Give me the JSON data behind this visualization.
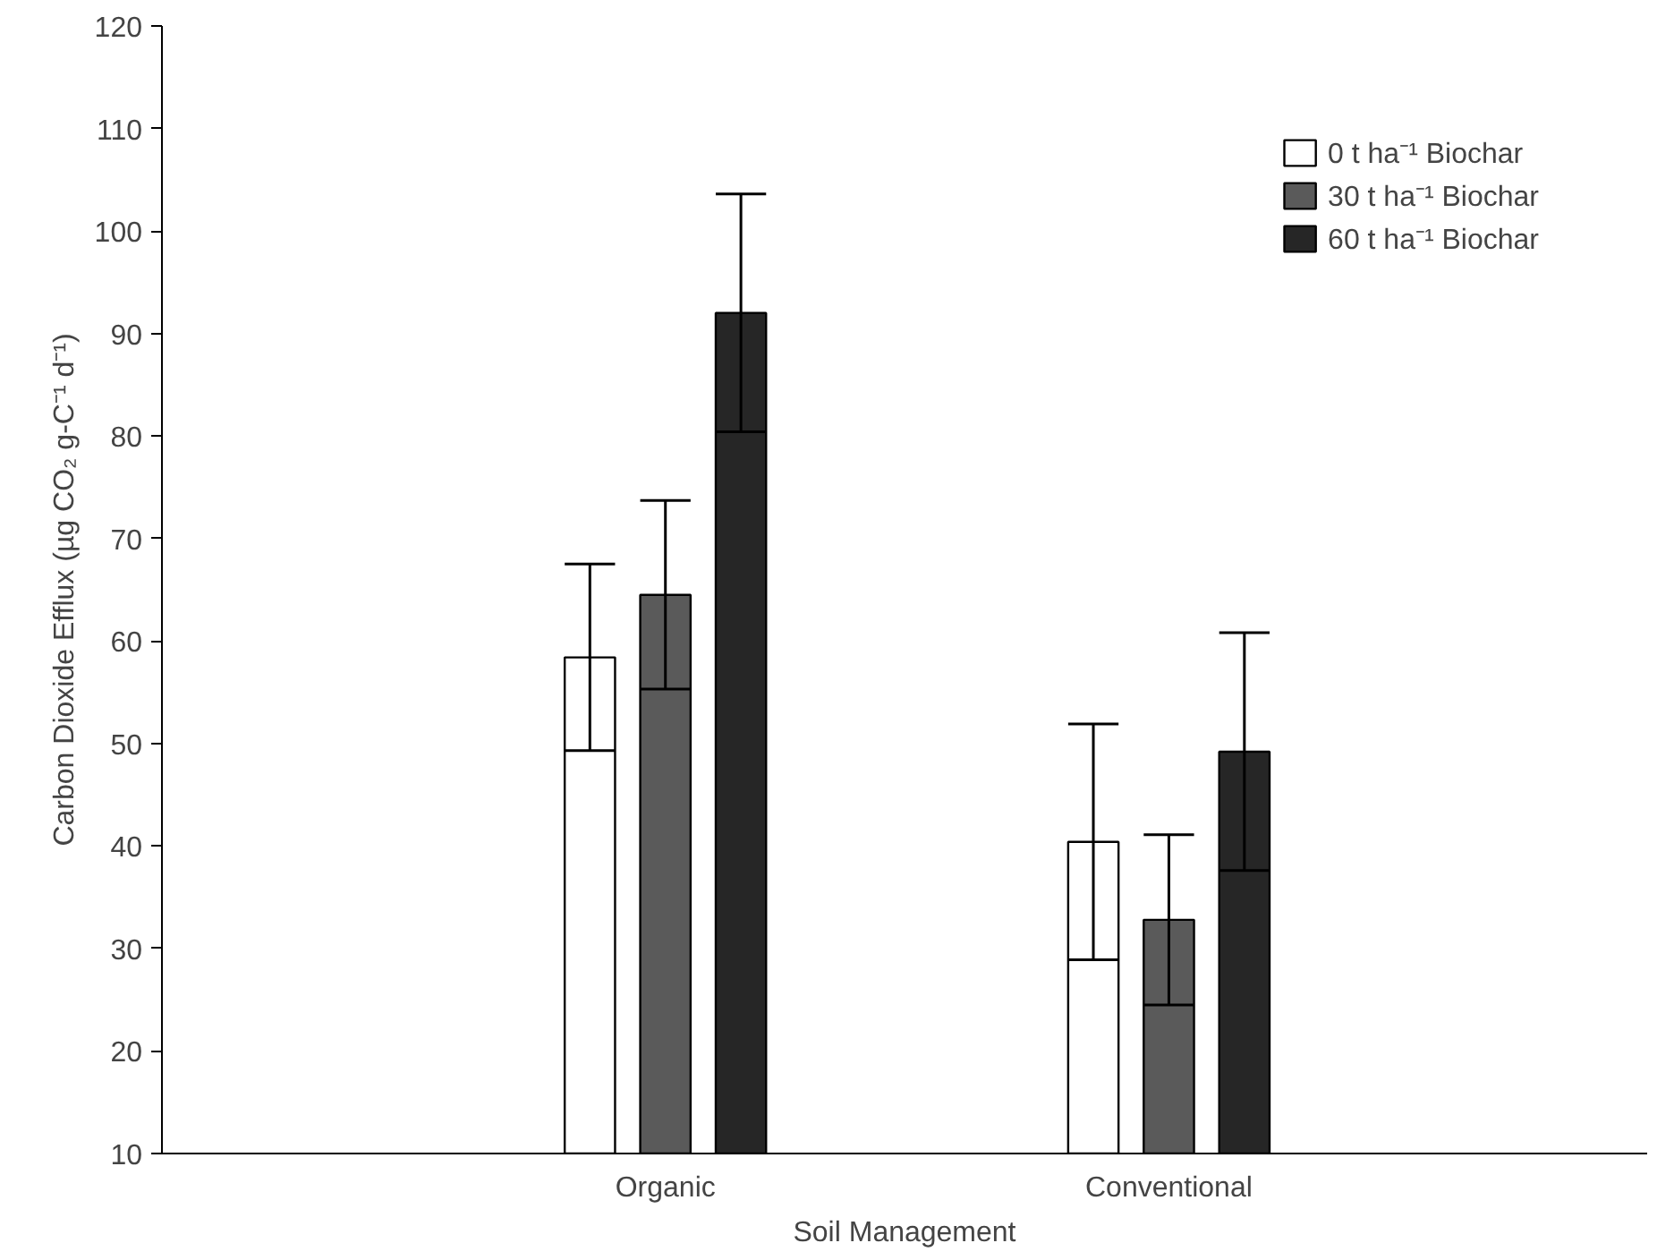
{
  "chart_data": {
    "type": "bar",
    "xlabel": "Soil Management",
    "ylabel": "Carbon Dioxide Efflux (µg CO₂ g-C⁻¹ d⁻¹)",
    "categories": [
      "Organic",
      "Conventional"
    ],
    "series": [
      {
        "name": "0 t ha⁻¹ Biochar",
        "color": "#ffffff",
        "values": [
          58.4,
          40.4
        ],
        "errors": [
          9.1,
          11.5
        ]
      },
      {
        "name": "30 t ha⁻¹ Biochar",
        "color": "#5a5a5a",
        "values": [
          64.5,
          32.8
        ],
        "errors": [
          9.2,
          8.3
        ]
      },
      {
        "name": "60 t ha⁻¹ Biochar",
        "color": "#262626",
        "values": [
          92.0,
          49.2
        ],
        "errors": [
          11.6,
          11.6
        ]
      }
    ],
    "ylim": [
      10,
      120
    ],
    "yticks": [
      10,
      20,
      30,
      40,
      50,
      60,
      70,
      80,
      90,
      100,
      110,
      120
    ],
    "grid": false,
    "legend": "top right"
  }
}
